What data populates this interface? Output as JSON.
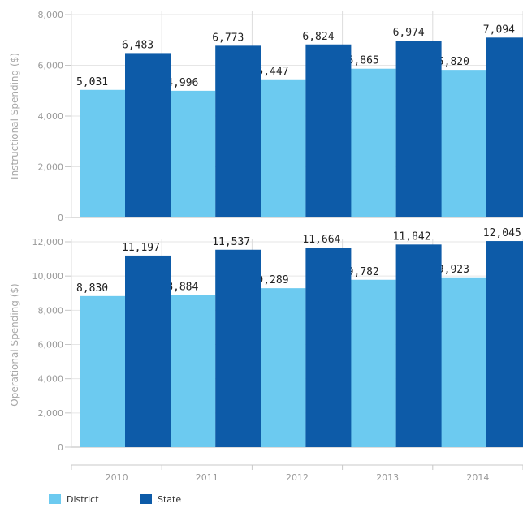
{
  "chart_data": [
    {
      "type": "bar",
      "ylabel": "Instructional Spending ($)",
      "ylim": [
        0,
        8000
      ],
      "yticks": [
        "0",
        "2,000",
        "4,000",
        "6,000",
        "8,000"
      ],
      "categories": [
        "2010",
        "2011",
        "2012",
        "2013",
        "2014"
      ],
      "series": [
        {
          "name": "District",
          "color": "#6ccaf0",
          "values": [
            5031,
            4996,
            5447,
            5865,
            5820
          ],
          "labels": [
            "5,031",
            "4,996",
            "5,447",
            "5,865",
            "5,820"
          ]
        },
        {
          "name": "State",
          "color": "#0d5ba8",
          "values": [
            6483,
            6773,
            6824,
            6974,
            7094
          ],
          "labels": [
            "6,483",
            "6,773",
            "6,824",
            "6,974",
            "7,094"
          ]
        }
      ],
      "grid": true
    },
    {
      "type": "bar",
      "ylabel": "Operational Spending ($)",
      "ylim": [
        0,
        12000
      ],
      "yticks": [
        "0",
        "2,000",
        "4,000",
        "6,000",
        "8,000",
        "10,000",
        "12,000"
      ],
      "categories": [
        "2010",
        "2011",
        "2012",
        "2013",
        "2014"
      ],
      "series": [
        {
          "name": "District",
          "color": "#6ccaf0",
          "values": [
            8830,
            8884,
            9289,
            9782,
            9923
          ],
          "labels": [
            "8,830",
            "8,884",
            "9,289",
            "9,782",
            "9,923"
          ]
        },
        {
          "name": "State",
          "color": "#0d5ba8",
          "values": [
            11197,
            11537,
            11664,
            11842,
            12045
          ],
          "labels": [
            "11,197",
            "11,537",
            "11,664",
            "11,842",
            "12,045"
          ]
        }
      ],
      "grid": true
    }
  ],
  "legend": {
    "placement": "bottom-left",
    "items": [
      {
        "label": "District",
        "color": "#6ccaf0"
      },
      {
        "label": "State",
        "color": "#0d5ba8"
      }
    ]
  }
}
